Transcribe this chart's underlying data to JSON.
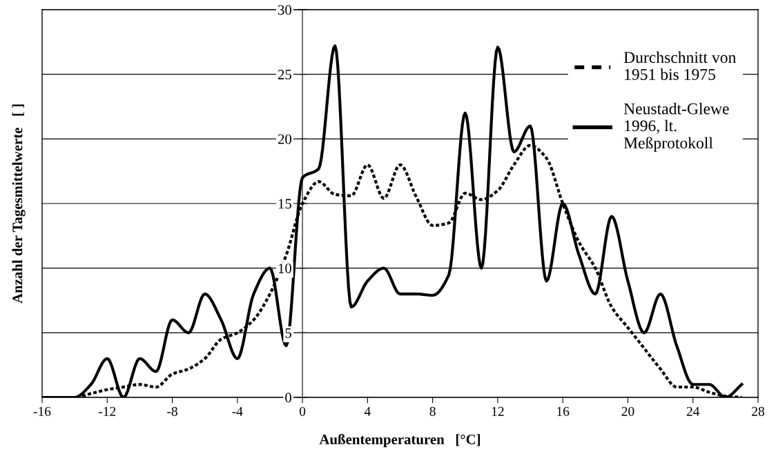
{
  "chart_data": {
    "type": "line",
    "xlabel": "Außentemperaturen   [°C]",
    "ylabel": "Anzahl der Tagesmittelwerte   [ ]",
    "x": [
      -16,
      -15,
      -14,
      -13,
      -12,
      -11,
      -10,
      -9,
      -8,
      -7,
      -6,
      -5,
      -4,
      -3,
      -2,
      -1,
      0,
      1,
      2,
      3,
      4,
      5,
      6,
      7,
      8,
      9,
      10,
      11,
      12,
      13,
      14,
      15,
      16,
      17,
      18,
      19,
      20,
      21,
      22,
      23,
      24,
      25,
      26,
      27
    ],
    "series": [
      {
        "name": "Durchschnitt von 1951 bis 1975",
        "color": "#000000",
        "line_style": "dotted",
        "values": [
          0,
          0,
          0,
          0.3,
          0.6,
          0.8,
          1,
          0.8,
          1.8,
          2.2,
          3,
          4.5,
          5,
          6,
          8,
          11,
          15,
          16.7,
          15.7,
          15.6,
          18,
          15.4,
          18,
          15.5,
          13.3,
          13.5,
          15.8,
          15.3,
          16,
          18,
          19.5,
          18.5,
          15,
          12,
          10,
          7,
          5.4,
          3.8,
          2.2,
          0.8,
          0.8,
          0.4,
          0.1,
          0
        ]
      },
      {
        "name": "Neustadt-Glewe 1996, lt. Meßprotokoll",
        "color": "#000000",
        "line_style": "solid",
        "values": [
          0,
          0,
          0,
          1,
          3,
          0,
          3,
          2,
          6,
          5,
          8,
          6,
          3,
          8,
          10,
          4,
          17,
          17.7,
          27.2,
          7,
          9,
          10,
          8,
          8,
          7.9,
          9.5,
          22,
          10,
          27.1,
          19,
          21,
          9,
          15,
          11,
          8,
          14,
          9,
          5,
          8,
          4,
          1,
          1,
          0,
          1
        ]
      }
    ],
    "xlim": [
      -16,
      28
    ],
    "xticks": [
      -16,
      -12,
      -8,
      -4,
      0,
      4,
      8,
      12,
      16,
      20,
      24,
      28
    ],
    "ylim": [
      0,
      30
    ],
    "yticks": [
      0,
      5,
      10,
      15,
      20,
      25,
      30
    ],
    "grid": "y",
    "legend": "top right",
    "marker": "none"
  }
}
